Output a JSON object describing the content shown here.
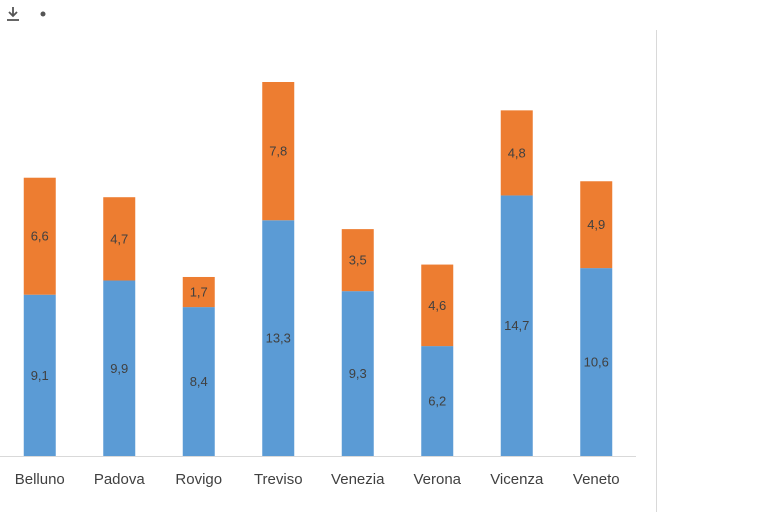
{
  "toolbar": {
    "icons": [
      "download-icon",
      "dot-icon"
    ]
  },
  "colors": {
    "series1": "#5b9bd5",
    "series2": "#ed7d31",
    "axis": "#d9d9d9",
    "text": "#404040"
  },
  "chart_data": {
    "type": "bar",
    "stacked": true,
    "categories": [
      "Belluno",
      "Padova",
      "Rovigo",
      "Treviso",
      "Venezia",
      "Verona",
      "Vicenza",
      "Veneto"
    ],
    "series": [
      {
        "values": [
          9.1,
          9.9,
          8.4,
          13.3,
          9.3,
          6.2,
          14.7,
          10.6
        ],
        "labels": [
          "9,1",
          "9,9",
          "8,4",
          "13,3",
          "9,3",
          "6,2",
          "14,7",
          "10,6"
        ],
        "color": "#5b9bd5"
      },
      {
        "values": [
          6.6,
          4.7,
          1.7,
          7.8,
          3.5,
          4.6,
          4.8,
          4.9
        ],
        "labels": [
          "6,6",
          "4,7",
          "1,7",
          "7,8",
          "3,5",
          "4,6",
          "4,8",
          "4,9"
        ],
        "color": "#ed7d31"
      }
    ],
    "ylim": [
      0,
      21.1
    ],
    "grid": false,
    "legend": "none",
    "data_labels": true
  }
}
